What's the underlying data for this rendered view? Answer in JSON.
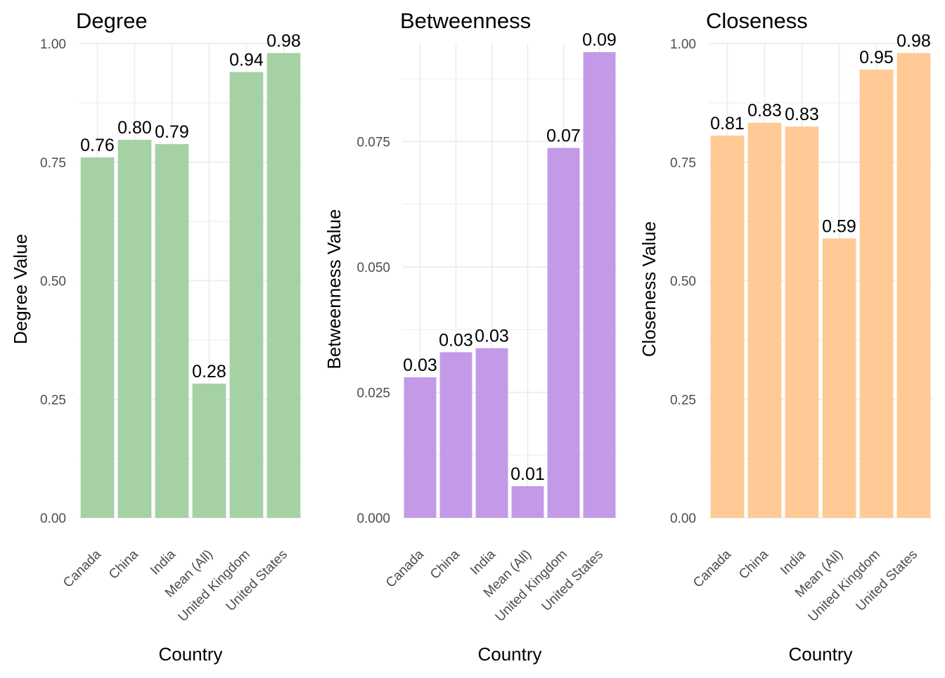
{
  "chart_data": [
    {
      "type": "bar",
      "title": "Degree",
      "xlabel": "Country",
      "ylabel": "Degree Value",
      "categories": [
        "Canada",
        "China",
        "India",
        "Mean (All)",
        "United Kingdom",
        "United States"
      ],
      "values": [
        0.76,
        0.797,
        0.788,
        0.283,
        0.94,
        0.98
      ],
      "value_labels": [
        "0.76",
        "0.80",
        "0.79",
        "0.28",
        "0.94",
        "0.98"
      ],
      "ylim": [
        0,
        1.0
      ],
      "yticks": [
        0.0,
        0.25,
        0.5,
        0.75,
        1.0
      ],
      "ytick_labels": [
        "0.00",
        "0.25",
        "0.50",
        "0.75",
        "1.00"
      ],
      "bar_color": "#A5D1A5",
      "grid": true
    },
    {
      "type": "bar",
      "title": "Betweenness",
      "xlabel": "Country",
      "ylabel": "Betweenness Value",
      "categories": [
        "Canada",
        "China",
        "India",
        "Mean (All)",
        "United Kingdom",
        "United States"
      ],
      "values": [
        0.028,
        0.033,
        0.0338,
        0.0063,
        0.0737,
        0.0928
      ],
      "value_labels": [
        "0.03",
        "0.03",
        "0.03",
        "0.01",
        "0.07",
        "0.09"
      ],
      "ylim": [
        0,
        0.0945
      ],
      "yticks": [
        0.0,
        0.025,
        0.05,
        0.075
      ],
      "ytick_labels": [
        "0.000",
        "0.025",
        "0.050",
        "0.075"
      ],
      "bar_color": "#C29AE8",
      "grid": true
    },
    {
      "type": "bar",
      "title": "Closeness",
      "xlabel": "Country",
      "ylabel": "Closeness Value",
      "categories": [
        "Canada",
        "China",
        "India",
        "Mean (All)",
        "United Kingdom",
        "United States"
      ],
      "values": [
        0.806,
        0.833,
        0.825,
        0.589,
        0.945,
        0.98
      ],
      "value_labels": [
        "0.81",
        "0.83",
        "0.83",
        "0.59",
        "0.95",
        "0.98"
      ],
      "ylim": [
        0,
        1.0
      ],
      "yticks": [
        0.0,
        0.25,
        0.5,
        0.75,
        1.0
      ],
      "ytick_labels": [
        "0.00",
        "0.25",
        "0.50",
        "0.75",
        "1.00"
      ],
      "bar_color": "#FFCA96",
      "grid": true
    }
  ]
}
